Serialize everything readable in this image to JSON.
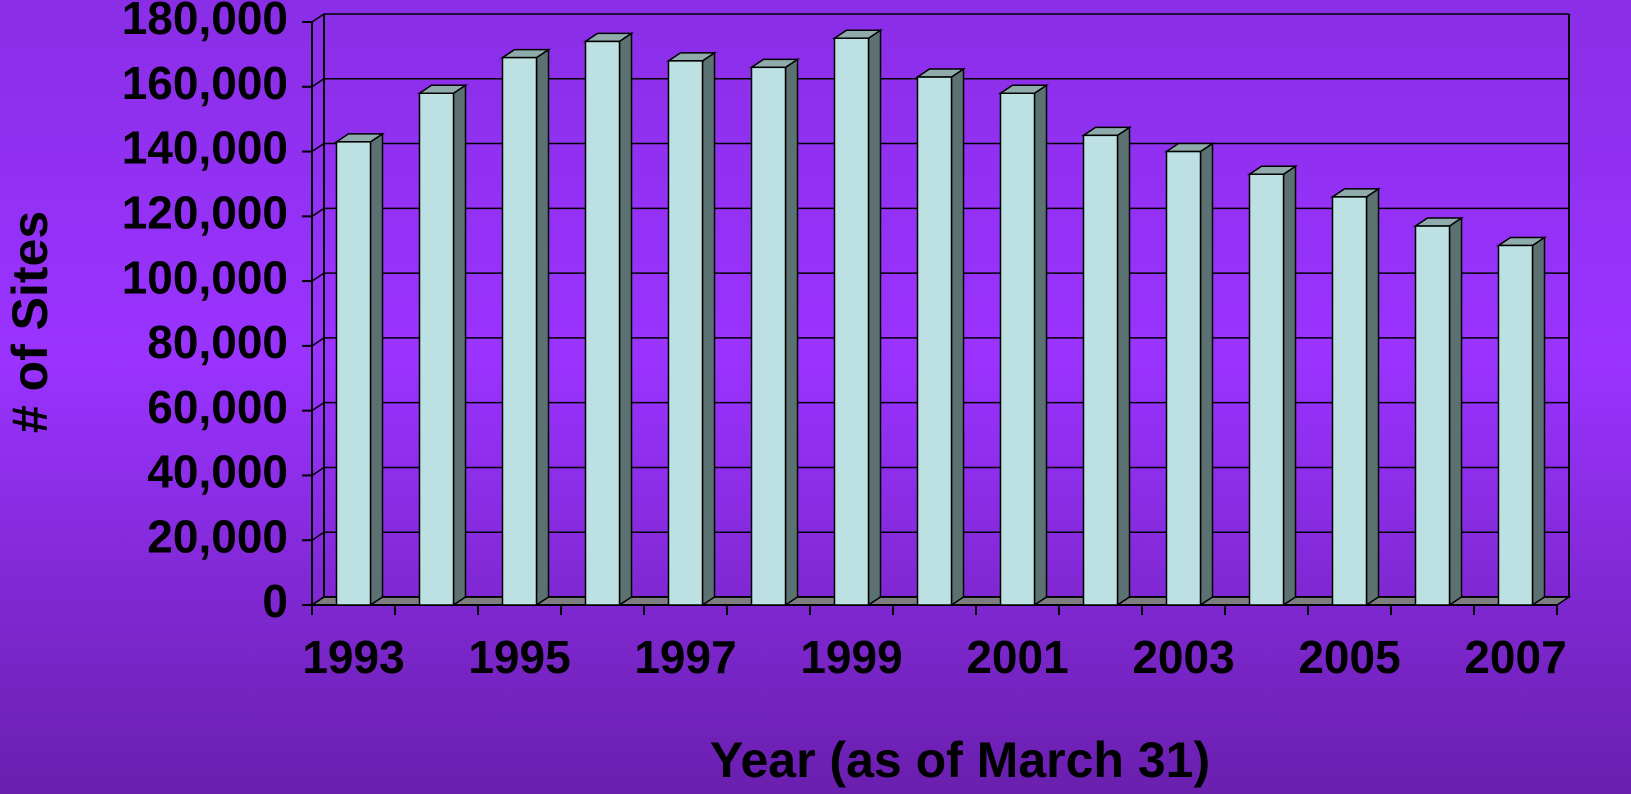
{
  "chart_data": {
    "type": "bar3d",
    "xlabel": "Year (as of March 31)",
    "ylabel": "# of Sites",
    "categories": [
      "1993",
      null,
      "1995",
      null,
      "1997",
      null,
      "1999",
      null,
      "2001",
      null,
      "2003",
      null,
      "2005",
      null,
      "2007"
    ],
    "values": [
      143000,
      158000,
      169000,
      174000,
      168000,
      166000,
      175000,
      163000,
      158000,
      145000,
      140000,
      133000,
      126000,
      117000,
      111000
    ],
    "color": "#bde0e3",
    "ylim": [
      0,
      180000
    ],
    "yticks": [
      0,
      {
        "value": 20000,
        "label": "20,000"
      },
      {
        "value": 40000,
        "label": "40,000"
      },
      {
        "value": 60000,
        "label": "60,000"
      },
      {
        "value": 80000,
        "label": "80,000"
      },
      {
        "value": 100000,
        "label": "100,000"
      },
      {
        "value": 120000,
        "label": "120,000"
      },
      {
        "value": 140000,
        "label": "140,000"
      },
      {
        "value": 160000,
        "label": "160,000"
      },
      {
        "value": 180000,
        "label": "180,000"
      }
    ],
    "grid": true
  }
}
